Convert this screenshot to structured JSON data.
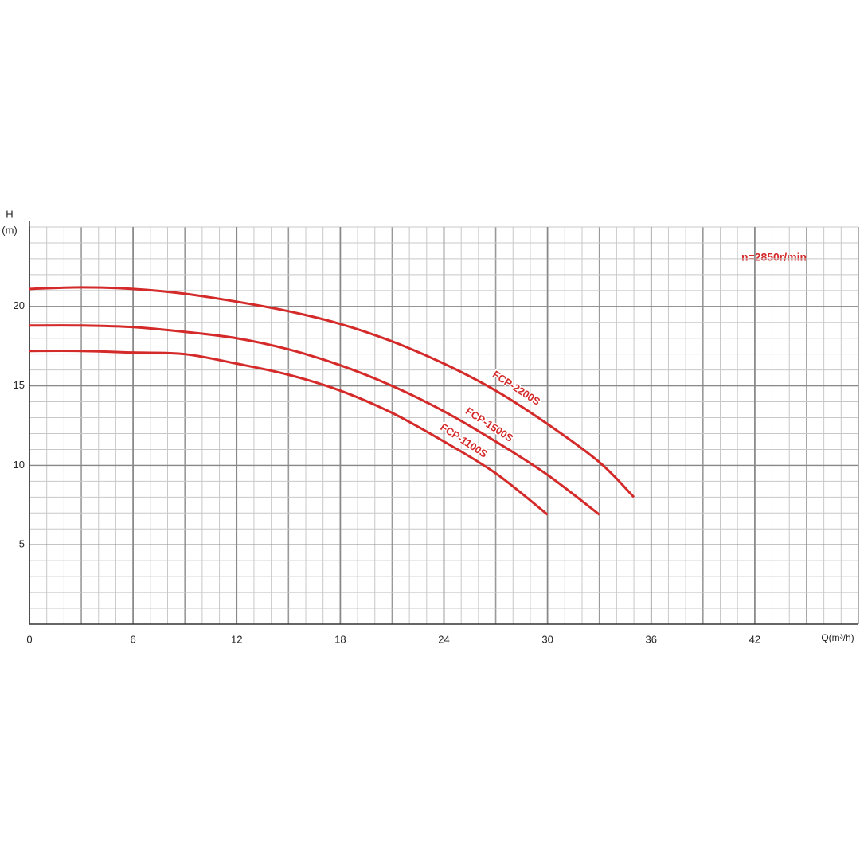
{
  "chart_data": {
    "type": "line",
    "y_label": [
      "H",
      "(m)"
    ],
    "x_label": "Q(m³/h)",
    "annotation": "n=2850r/min",
    "x": [
      0,
      3,
      6,
      9,
      12,
      15,
      18,
      21,
      24,
      27,
      30,
      33,
      35
    ],
    "series": [
      {
        "name": "FCP-2200S",
        "color": "#d42a2a",
        "values": [
          21.1,
          21.2,
          21.1,
          20.8,
          20.3,
          19.7,
          18.9,
          17.8,
          16.4,
          14.7,
          12.6,
          10.2,
          8.0
        ]
      },
      {
        "name": "FCP-1500S",
        "color": "#d42a2a",
        "values": [
          18.8,
          18.8,
          18.7,
          18.4,
          18.0,
          17.3,
          16.3,
          15.0,
          13.4,
          11.5,
          9.4,
          6.9,
          null
        ]
      },
      {
        "name": "FCP-1100S",
        "color": "#d42a2a",
        "values": [
          17.2,
          17.2,
          17.1,
          17.0,
          16.4,
          15.7,
          14.7,
          13.3,
          11.5,
          9.5,
          6.9,
          null,
          null
        ]
      }
    ],
    "xlim": [
      0,
      48
    ],
    "xticks": [
      0,
      6,
      12,
      18,
      24,
      30,
      36,
      42
    ],
    "ylim": [
      0,
      25
    ],
    "yticks": [
      5,
      10,
      15,
      20
    ],
    "grid": true
  }
}
